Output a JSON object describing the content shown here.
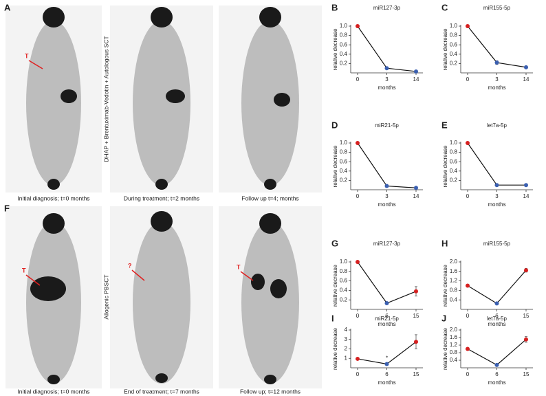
{
  "figure": {
    "top_panel": "A",
    "bottom_panel": "F",
    "top_treatment": "DHAP + Brentuximab-Vedotin + Autologous SCT",
    "bottom_treatment": "Allogenic PBSCT",
    "top_captions": [
      "Initial diagnosis; t=0 months",
      "During treatment; t=2 months",
      "Follow up t=4; months"
    ],
    "bottom_captions": [
      "Initial diagnosis; t=0 months",
      "End of treatment; t=7 months",
      "Follow up; t=12 months"
    ],
    "annotations": [
      "T",
      "T",
      "?",
      "T"
    ]
  },
  "chart_data": [
    {
      "type": "line",
      "panel": "B",
      "title": "miR127-3p",
      "xlabel": "months",
      "ylabel": "relative decrease",
      "categories": [
        "0",
        "3",
        "14"
      ],
      "values": [
        1.0,
        0.1,
        0.03
      ],
      "errors": [
        null,
        null,
        null
      ],
      "point_colors": [
        "#d62020",
        "#3a5fb0",
        "#3a5fb0"
      ],
      "ylim": [
        0,
        1
      ],
      "yticks": [
        0.2,
        0.4,
        0.6,
        0.8,
        {
          "value": 1,
          "label": "1.0"
        }
      ]
    },
    {
      "type": "line",
      "panel": "C",
      "title": "miR155-5p",
      "xlabel": "months",
      "ylabel": "relative decrease",
      "categories": [
        "0",
        "3",
        "14"
      ],
      "values": [
        1.0,
        0.22,
        0.12
      ],
      "errors": [
        null,
        0.04,
        null
      ],
      "point_colors": [
        "#d62020",
        "#3a5fb0",
        "#3a5fb0"
      ],
      "ylim": [
        0,
        1
      ],
      "yticks": [
        0.2,
        0.4,
        0.6,
        0.8,
        {
          "value": 1,
          "label": "1.0"
        }
      ]
    },
    {
      "type": "line",
      "panel": "D",
      "title": "miR21-5p",
      "xlabel": "months",
      "ylabel": "relative decrease",
      "categories": [
        "0",
        "3",
        "14"
      ],
      "values": [
        1.0,
        0.08,
        0.04
      ],
      "errors": [
        null,
        null,
        null
      ],
      "point_colors": [
        "#d62020",
        "#3a5fb0",
        "#3a5fb0"
      ],
      "ylim": [
        0,
        1
      ],
      "yticks": [
        0.2,
        0.4,
        0.6,
        0.8,
        {
          "value": 1,
          "label": "1.0"
        }
      ]
    },
    {
      "type": "line",
      "panel": "E",
      "title": "let7a-5p",
      "xlabel": "months",
      "ylabel": "relative decrease",
      "categories": [
        "0",
        "3",
        "14"
      ],
      "values": [
        1.0,
        0.1,
        0.1
      ],
      "errors": [
        null,
        null,
        null
      ],
      "point_colors": [
        "#d62020",
        "#3a5fb0",
        "#3a5fb0"
      ],
      "ylim": [
        0,
        1
      ],
      "yticks": [
        0.2,
        0.4,
        0.6,
        0.8,
        {
          "value": 1,
          "label": "1.0"
        }
      ]
    },
    {
      "type": "line",
      "panel": "G",
      "title": "miR127-3p",
      "xlabel": "months",
      "ylabel": "relative decrease",
      "categories": [
        "0",
        "6",
        "15"
      ],
      "values": [
        1.0,
        0.13,
        0.38
      ],
      "errors": [
        null,
        null,
        0.1
      ],
      "point_colors": [
        "#d62020",
        "#3a5fb0",
        "#d62020"
      ],
      "ylim": [
        0,
        1
      ],
      "yticks": [
        0.2,
        0.4,
        0.6,
        0.8,
        {
          "value": 1,
          "label": "1.0"
        }
      ]
    },
    {
      "type": "line",
      "panel": "H",
      "title": "miR155-5p",
      "xlabel": "months",
      "ylabel": "relative decrease",
      "categories": [
        "0",
        "6",
        "15"
      ],
      "values": [
        1.0,
        0.25,
        1.65
      ],
      "errors": [
        null,
        null,
        0.08
      ],
      "point_colors": [
        "#d62020",
        "#3a5fb0",
        "#d62020"
      ],
      "ylim": [
        0,
        2
      ],
      "yticks": [
        0.4,
        0.8,
        1.2,
        1.6,
        {
          "value": 2,
          "label": "2.0"
        }
      ]
    },
    {
      "type": "line",
      "panel": "I",
      "title": "miR21-5p",
      "xlabel": "months",
      "ylabel": "relative decrease",
      "categories": [
        "0",
        "6",
        "15"
      ],
      "values": [
        0.95,
        0.4,
        2.75
      ],
      "errors": [
        null,
        null,
        0.75
      ],
      "point_colors": [
        "#d62020",
        "#3a5fb0",
        "#d62020"
      ],
      "ylim": [
        0,
        4
      ],
      "yticks": [
        1,
        2,
        3,
        4
      ],
      "annotation": "*"
    },
    {
      "type": "line",
      "panel": "J",
      "title": "let7a-5p",
      "xlabel": "months",
      "ylabel": "relative decrease",
      "categories": [
        "0",
        "6",
        "15"
      ],
      "values": [
        1.0,
        0.15,
        1.5
      ],
      "errors": [
        null,
        null,
        0.15
      ],
      "point_colors": [
        "#d62020",
        "#3a5fb0",
        "#d62020"
      ],
      "ylim": [
        0,
        2
      ],
      "yticks": [
        0.4,
        0.8,
        1.2,
        1.6,
        {
          "value": 2,
          "label": "2.0"
        }
      ]
    }
  ]
}
